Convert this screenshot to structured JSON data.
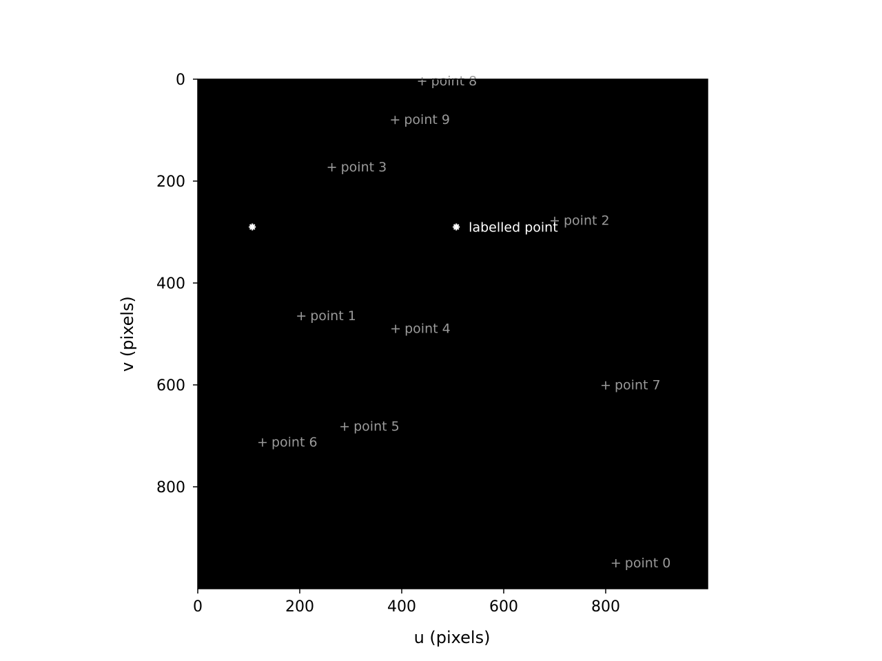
{
  "chart_data": {
    "type": "scatter",
    "title": "",
    "xlabel": "u (pixels)",
    "ylabel": "v (pixels)",
    "xlim": [
      0,
      1000
    ],
    "ylim": [
      0,
      1000
    ],
    "y_inverted": true,
    "background": "#000000",
    "grid": false,
    "xticks": [
      0,
      200,
      400,
      600,
      800
    ],
    "yticks": [
      0,
      200,
      400,
      600,
      800
    ],
    "points": [
      {
        "label": "point 0",
        "x": 820,
        "y": 950,
        "marker": "plus",
        "color": "#9a9a9a"
      },
      {
        "label": "point 1",
        "x": 203,
        "y": 465,
        "marker": "plus",
        "color": "#9a9a9a"
      },
      {
        "label": "point 2",
        "x": 700,
        "y": 278,
        "marker": "plus",
        "color": "#9a9a9a"
      },
      {
        "label": "point 3",
        "x": 263,
        "y": 173,
        "marker": "plus",
        "color": "#9a9a9a"
      },
      {
        "label": "point 4",
        "x": 388,
        "y": 490,
        "marker": "plus",
        "color": "#9a9a9a"
      },
      {
        "label": "point 5",
        "x": 288,
        "y": 682,
        "marker": "plus",
        "color": "#9a9a9a"
      },
      {
        "label": "point 6",
        "x": 127,
        "y": 713,
        "marker": "plus",
        "color": "#9a9a9a"
      },
      {
        "label": "point 7",
        "x": 800,
        "y": 601,
        "marker": "plus",
        "color": "#9a9a9a"
      },
      {
        "label": "point 8",
        "x": 440,
        "y": 4,
        "marker": "plus",
        "color": "#9a9a9a"
      },
      {
        "label": "point 9",
        "x": 387,
        "y": 80,
        "marker": "plus",
        "color": "#9a9a9a"
      },
      {
        "label": "labelled point",
        "x": 507,
        "y": 290,
        "marker": "asterisk",
        "color": "#ffffff"
      },
      {
        "label": "",
        "x": 107,
        "y": 290,
        "marker": "asterisk",
        "color": "#ffffff"
      }
    ]
  }
}
